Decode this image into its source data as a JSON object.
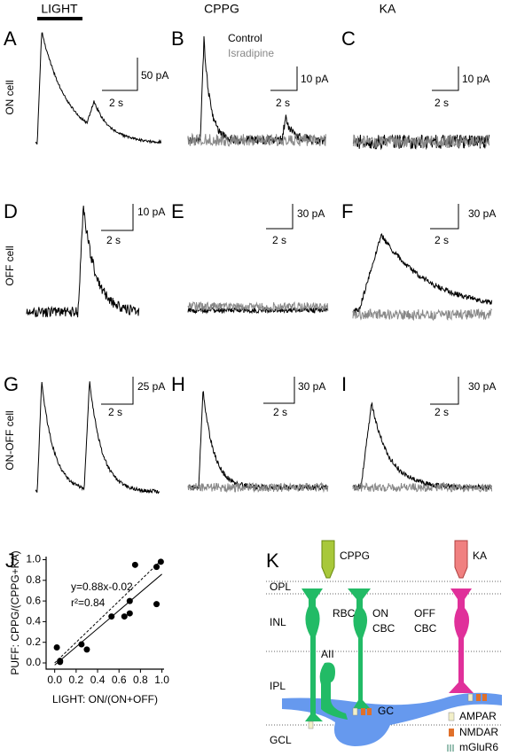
{
  "header": {
    "light": "LIGHT",
    "columns": [
      "CPPG",
      "KA"
    ]
  },
  "rows": [
    "ON cell",
    "OFF cell",
    "ON-OFF cell"
  ],
  "panels": [
    {
      "letter": "A",
      "scale_y": "50 pA",
      "scale_x": "2 s"
    },
    {
      "letter": "B",
      "scale_y": "10 pA",
      "scale_x": "2 s"
    },
    {
      "letter": "C",
      "scale_y": "10 pA",
      "scale_x": "2 s"
    },
    {
      "letter": "D",
      "scale_y": "10 pA",
      "scale_x": "2 s"
    },
    {
      "letter": "E",
      "scale_y": "30 pA",
      "scale_x": "2 s"
    },
    {
      "letter": "F",
      "scale_y": "30 pA",
      "scale_x": "2 s"
    },
    {
      "letter": "G",
      "scale_y": "25 pA",
      "scale_x": "2 s"
    },
    {
      "letter": "H",
      "scale_y": "30 pA",
      "scale_x": "2 s"
    },
    {
      "letter": "I",
      "scale_y": "30 pA",
      "scale_x": "2 s"
    }
  ],
  "legend": {
    "control": "Control",
    "isradipine": "Isradipine"
  },
  "chart_data": {
    "type": "scatter",
    "letter": "J",
    "xlabel": "LIGHT: ON/(ON+OFF)",
    "ylabel": "PUFF: CPPG/(CPPG+KA)",
    "x": [
      0.02,
      0.05,
      0.05,
      0.25,
      0.3,
      0.53,
      0.65,
      0.7,
      0.7,
      0.75,
      0.95,
      0.95,
      0.99
    ],
    "values": [
      0.15,
      0.02,
      0.01,
      0.18,
      0.13,
      0.45,
      0.45,
      0.48,
      0.6,
      0.95,
      0.57,
      0.93,
      0.98
    ],
    "color": "#000000",
    "xlim": [
      -0.08,
      1.02
    ],
    "ylim": [
      -0.06,
      1.03
    ],
    "xticks": [
      {
        "value": 0,
        "label": "0.0"
      },
      {
        "value": 0.2,
        "label": "0.2"
      },
      {
        "value": 0.4,
        "label": "0.4"
      },
      {
        "value": 0.6,
        "label": "0.6"
      },
      {
        "value": 0.8,
        "label": "0.8"
      },
      {
        "value": 1,
        "label": "1.0"
      }
    ],
    "yticks": [
      {
        "value": 0,
        "label": "0.0"
      },
      {
        "value": 0.2,
        "label": "0.2"
      },
      {
        "value": 0.4,
        "label": "0.4"
      },
      {
        "value": 0.6,
        "label": "0.6"
      },
      {
        "value": 0.8,
        "label": "0.8"
      },
      {
        "value": 1,
        "label": "1.0"
      }
    ],
    "fit": {
      "slope": 0.88,
      "intercept": -0.02,
      "label": "y=0.88x-0.02"
    },
    "r2_label": "r²=0.84"
  },
  "diagram": {
    "letter": "K",
    "drugs": [
      "CPPG",
      "KA"
    ],
    "layers": [
      "OPL",
      "INL",
      "IPL",
      "GCL"
    ],
    "cells": {
      "rbc": "RBC",
      "aii": "AII",
      "on_cbc": [
        "ON",
        "CBC"
      ],
      "off_cbc": [
        "OFF",
        "CBC"
      ],
      "gc": "GC"
    },
    "receptors": [
      "AMPAR",
      "NMDAR",
      "mGluR6"
    ]
  }
}
